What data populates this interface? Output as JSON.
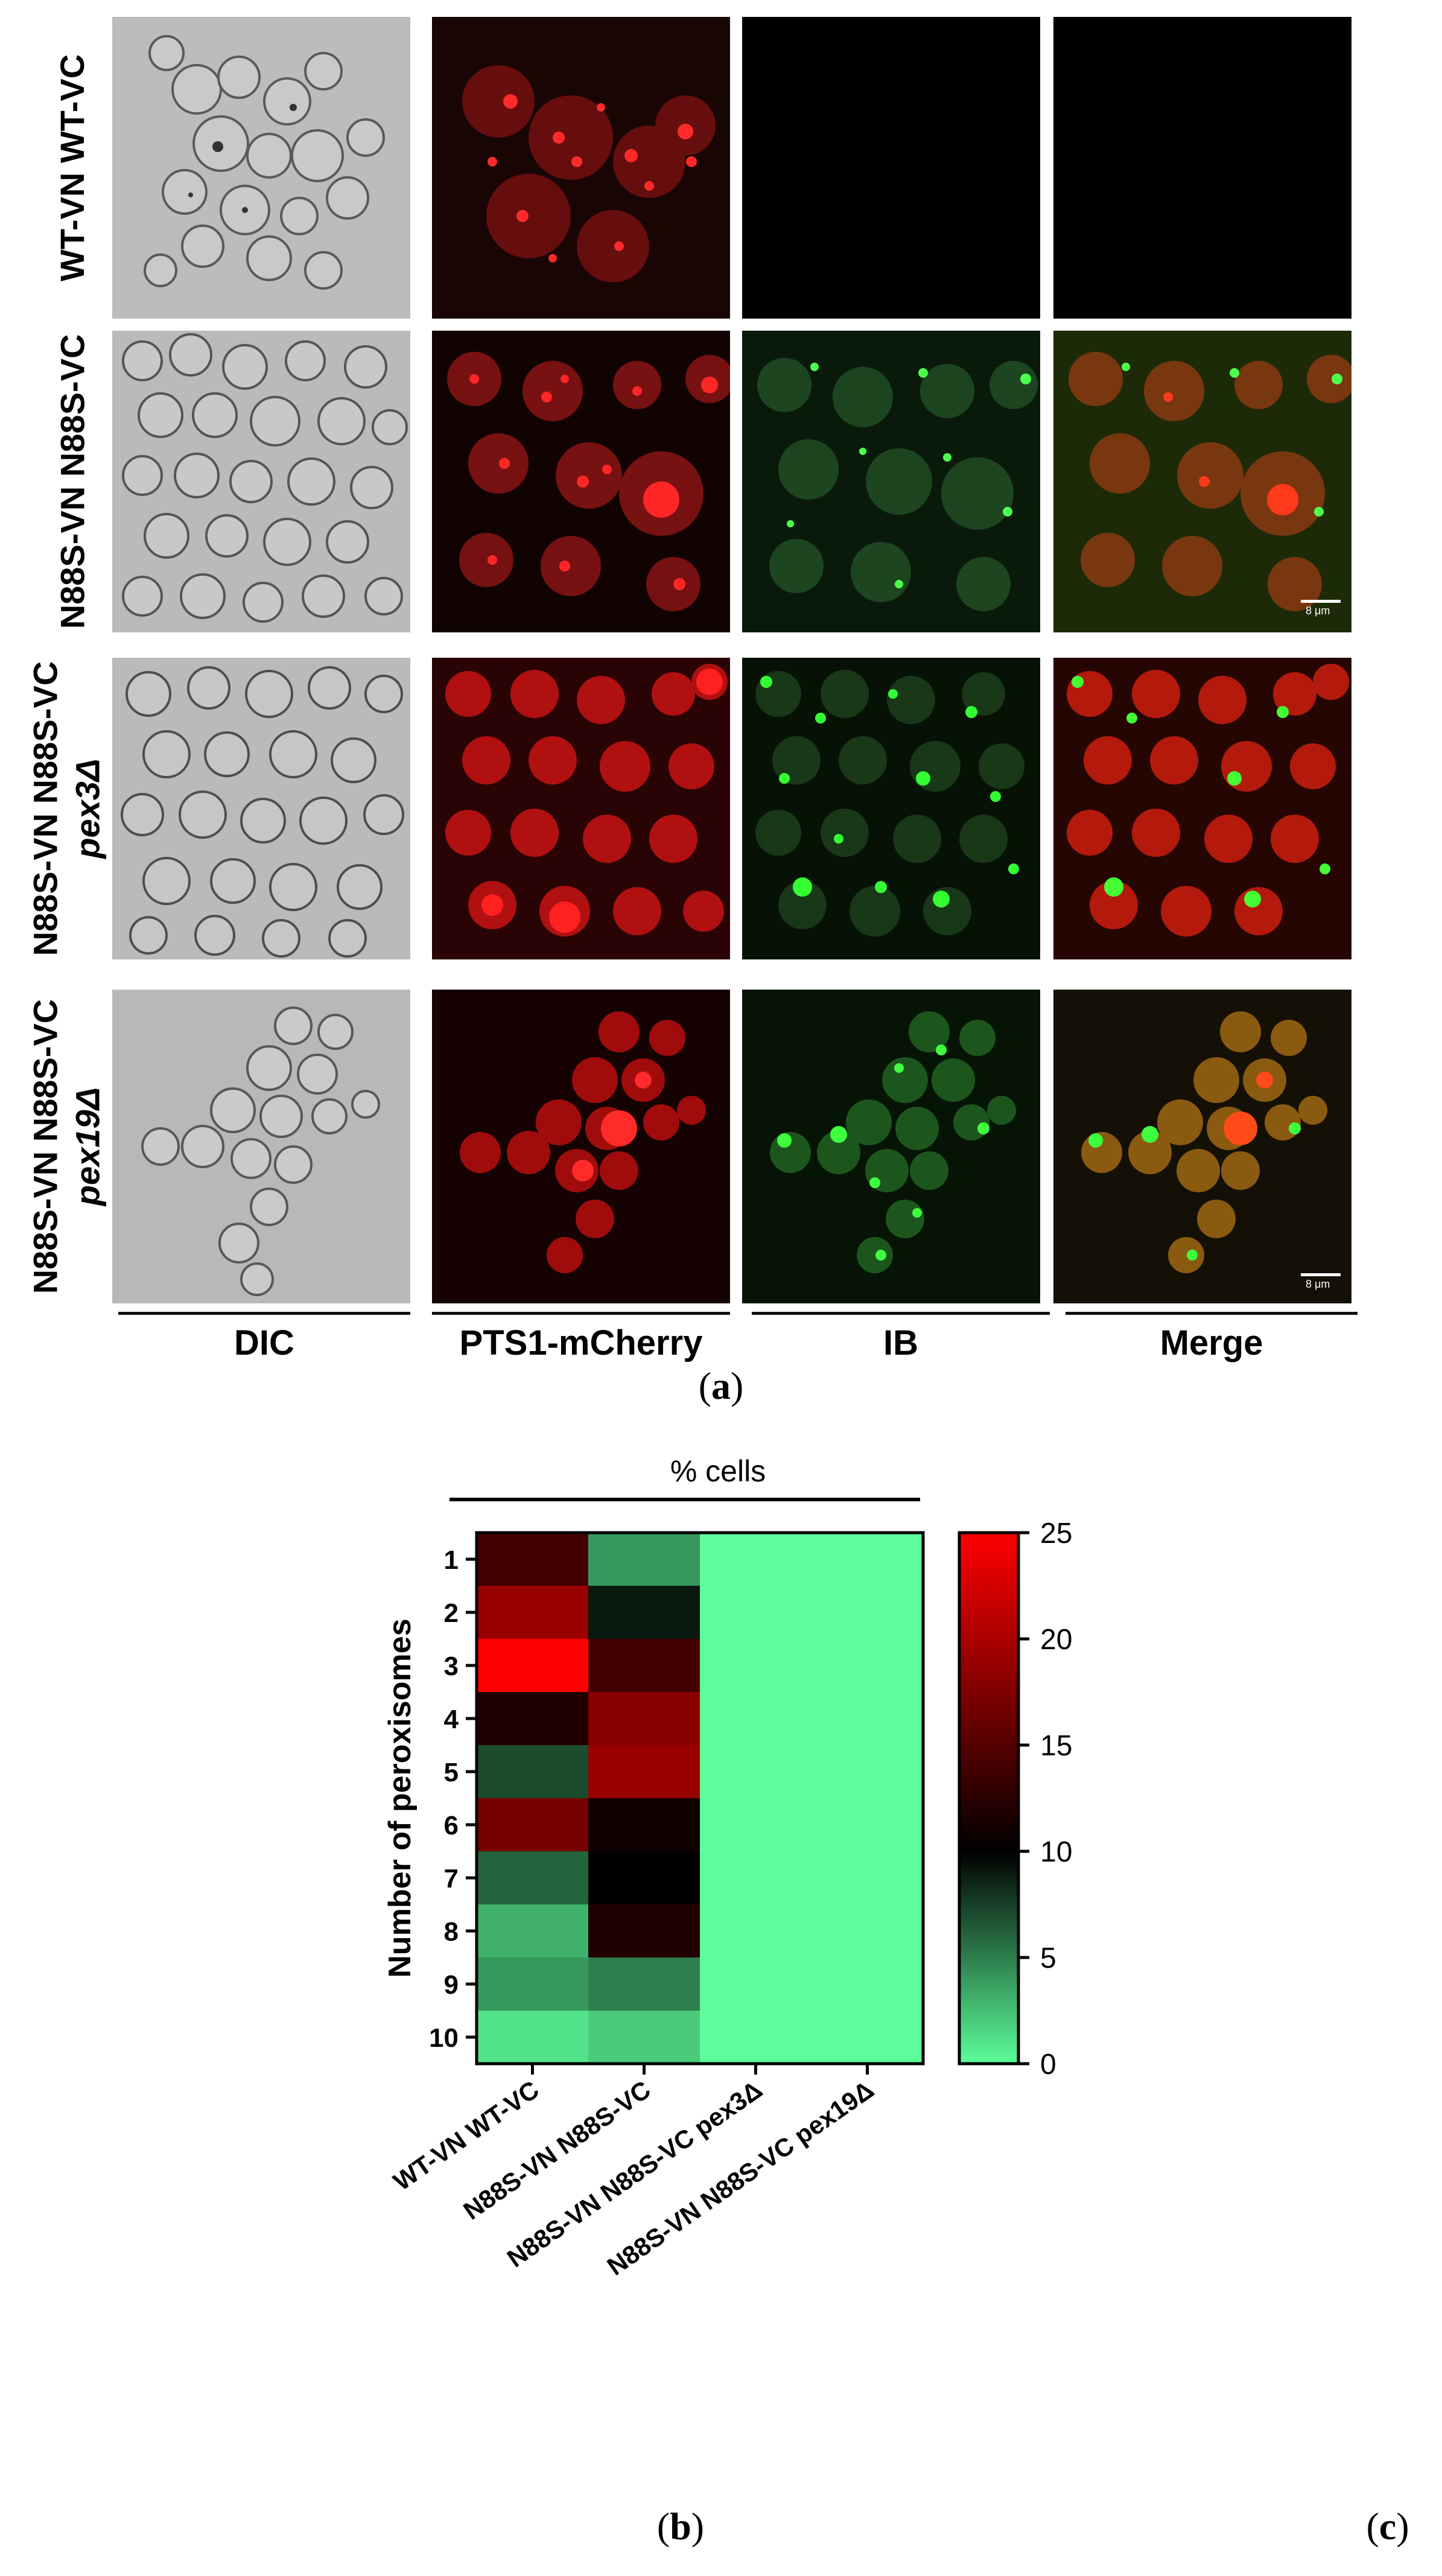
{
  "figure_a": {
    "row_labels": [
      {
        "line1": "WT-VN WT-VC",
        "line2": ""
      },
      {
        "line1": "N88S-VN N88S-VC",
        "line2": ""
      },
      {
        "line1": "N88S-VN N88S-VC",
        "line2": "pex3Δ"
      },
      {
        "line1": "N88S-VN N88S-VC",
        "line2": "pex19Δ"
      }
    ],
    "column_labels": [
      "DIC",
      "PTS1-mCherry",
      "IB",
      "Merge"
    ],
    "scale_label": "8 μm",
    "panel_letter_open": "(",
    "panel_letter": "a",
    "panel_letter_close": ")"
  },
  "figure_b": {
    "panel_letter_open": "(",
    "panel_letter": "b",
    "panel_letter_close": ")"
  },
  "figure_c": {
    "panel_letter_open": "(",
    "panel_letter": "c",
    "panel_letter_close": ")"
  },
  "chart_data": {
    "type": "heatmap",
    "title": "% cells",
    "ylabel": "Number of peroxisomes",
    "xlabel": "",
    "x_categories": [
      "WT-VN WT-VC",
      "N88S-VN N88S-VC",
      "N88S-VN N88S-VC pex3Δ",
      "N88S-VN N88S-VC pex19Δ"
    ],
    "y_categories": [
      "1",
      "2",
      "3",
      "4",
      "5",
      "6",
      "7",
      "8",
      "9",
      "10"
    ],
    "values": [
      [
        14,
        4,
        0,
        0
      ],
      [
        19,
        9,
        0,
        0
      ],
      [
        25,
        14,
        0,
        0
      ],
      [
        12,
        18,
        0,
        0
      ],
      [
        7,
        19,
        0,
        0
      ],
      [
        17,
        11,
        0,
        0
      ],
      [
        6,
        10,
        0,
        0
      ],
      [
        3,
        12,
        0,
        0
      ],
      [
        4,
        5,
        0,
        0
      ],
      [
        1,
        2,
        0,
        0
      ]
    ],
    "colorbar": {
      "min": 0,
      "max": 25,
      "ticks": [
        0,
        5,
        10,
        15,
        20,
        25
      ],
      "colors": [
        "#5cfd9a",
        "#000000",
        "#ff0000"
      ]
    }
  }
}
